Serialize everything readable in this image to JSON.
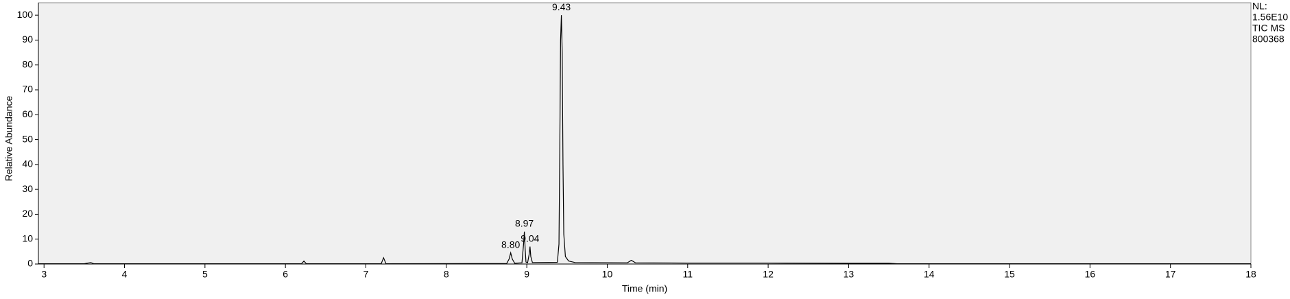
{
  "chart_data": {
    "type": "line",
    "y_label": "Relative Abundance",
    "x_label": "Time (min)",
    "info": [
      "NL:",
      "1.56E10",
      "TIC  MS",
      "800368"
    ],
    "x": [
      2.93,
      3.5,
      3.58,
      3.62,
      3.7,
      6.2,
      6.23,
      6.26,
      7.19,
      7.22,
      7.25,
      8.75,
      8.78,
      8.8,
      8.82,
      8.85,
      8.94,
      8.96,
      8.97,
      8.98,
      8.99,
      9.01,
      9.03,
      9.04,
      9.05,
      9.07,
      9.38,
      9.4,
      9.41,
      9.42,
      9.43,
      9.44,
      9.45,
      9.46,
      9.48,
      9.52,
      9.6,
      10.25,
      10.3,
      10.35,
      11,
      12,
      13,
      13.5,
      13.6,
      18
    ],
    "y": [
      0.1,
      0.1,
      0.6,
      0.1,
      0.1,
      0.1,
      1.2,
      0.1,
      0.1,
      2.5,
      0.1,
      0.2,
      2,
      4.5,
      2,
      0.3,
      0.5,
      8,
      13,
      6,
      0.8,
      0.5,
      4,
      7,
      3,
      0.6,
      0.7,
      8,
      45,
      90,
      100,
      85,
      40,
      12,
      3,
      1.2,
      0.6,
      0.5,
      1.5,
      0.5,
      0.4,
      0.4,
      0.3,
      0.3,
      0.1,
      0.1
    ],
    "color": "#000000",
    "annotations": [
      {
        "label": "8.80",
        "x": 8.8,
        "y": 4.5
      },
      {
        "label": "8.97",
        "x": 8.97,
        "y": 13
      },
      {
        "label": "9.04",
        "x": 9.04,
        "y": 7
      },
      {
        "label": "9.43",
        "x": 9.43,
        "y": 100
      }
    ],
    "xlim": [
      2.93,
      18
    ],
    "ylim": [
      0,
      105
    ],
    "xticks": [
      3,
      4,
      5,
      6,
      7,
      8,
      9,
      10,
      11,
      12,
      13,
      14,
      15,
      16,
      17,
      18
    ],
    "yticks": [
      0,
      10,
      20,
      30,
      40,
      50,
      60,
      70,
      80,
      90,
      100
    ]
  }
}
